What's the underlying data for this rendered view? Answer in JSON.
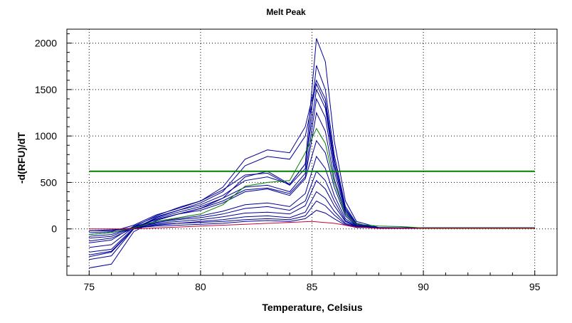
{
  "chart_data": {
    "type": "line",
    "title": "Melt Peak",
    "xlabel": "Temperature, Celsius",
    "ylabel": "-d(RFU)/dT",
    "xlim": [
      74,
      96
    ],
    "ylim": [
      -500,
      2150
    ],
    "xticks": [
      75,
      80,
      85,
      90,
      95
    ],
    "yticks": [
      0,
      500,
      1000,
      1500,
      2000
    ],
    "grid": true,
    "threshold": {
      "value": 620,
      "color": "#008000"
    },
    "colors": {
      "main": "#000099",
      "alt": "#008000",
      "low": "#cc0033"
    },
    "series": [
      {
        "color": "#000099",
        "values": [
          [
            75,
            -20
          ],
          [
            76,
            -20
          ],
          [
            77,
            10
          ],
          [
            78,
            100
          ],
          [
            79,
            160
          ],
          [
            80,
            220
          ],
          [
            81,
            330
          ],
          [
            82,
            560
          ],
          [
            83,
            620
          ],
          [
            84,
            480
          ],
          [
            84.7,
            700
          ],
          [
            85.2,
            2050
          ],
          [
            85.6,
            1800
          ],
          [
            86,
            950
          ],
          [
            86.5,
            300
          ],
          [
            87,
            80
          ],
          [
            88,
            15
          ],
          [
            90,
            10
          ],
          [
            95,
            10
          ]
        ]
      },
      {
        "color": "#000099",
        "values": [
          [
            75,
            -100
          ],
          [
            76,
            -80
          ],
          [
            77,
            20
          ],
          [
            78,
            140
          ],
          [
            79,
            230
          ],
          [
            80,
            300
          ],
          [
            81,
            420
          ],
          [
            82,
            580
          ],
          [
            83,
            600
          ],
          [
            84,
            470
          ],
          [
            84.7,
            650
          ],
          [
            85.2,
            1760
          ],
          [
            85.6,
            1500
          ],
          [
            86,
            800
          ],
          [
            86.5,
            240
          ],
          [
            87,
            60
          ],
          [
            88,
            10
          ],
          [
            95,
            10
          ]
        ]
      },
      {
        "color": "#000099",
        "values": [
          [
            75,
            -40
          ],
          [
            76,
            -30
          ],
          [
            77,
            40
          ],
          [
            78,
            150
          ],
          [
            79,
            220
          ],
          [
            80,
            300
          ],
          [
            81,
            450
          ],
          [
            82,
            750
          ],
          [
            83,
            850
          ],
          [
            84,
            820
          ],
          [
            84.7,
            1100
          ],
          [
            85.2,
            1600
          ],
          [
            85.6,
            1400
          ],
          [
            86,
            750
          ],
          [
            86.5,
            220
          ],
          [
            87,
            50
          ],
          [
            88,
            10
          ],
          [
            95,
            10
          ]
        ]
      },
      {
        "color": "#000099",
        "values": [
          [
            75,
            -300
          ],
          [
            76,
            -250
          ],
          [
            77,
            0
          ],
          [
            78,
            120
          ],
          [
            79,
            200
          ],
          [
            80,
            280
          ],
          [
            81,
            400
          ],
          [
            82,
            680
          ],
          [
            83,
            780
          ],
          [
            84,
            750
          ],
          [
            84.7,
            1000
          ],
          [
            85.2,
            1560
          ],
          [
            85.6,
            1350
          ],
          [
            86,
            700
          ],
          [
            86.5,
            200
          ],
          [
            87,
            50
          ],
          [
            88,
            10
          ],
          [
            95,
            10
          ]
        ]
      },
      {
        "color": "#000099",
        "values": [
          [
            75,
            -150
          ],
          [
            76,
            -120
          ],
          [
            77,
            30
          ],
          [
            78,
            130
          ],
          [
            79,
            200
          ],
          [
            80,
            260
          ],
          [
            81,
            360
          ],
          [
            82,
            520
          ],
          [
            83,
            560
          ],
          [
            84,
            480
          ],
          [
            84.7,
            700
          ],
          [
            85.2,
            1500
          ],
          [
            85.6,
            1300
          ],
          [
            86,
            680
          ],
          [
            86.5,
            200
          ],
          [
            87,
            50
          ],
          [
            88,
            10
          ],
          [
            95,
            10
          ]
        ]
      },
      {
        "color": "#000099",
        "values": [
          [
            75,
            -250
          ],
          [
            76,
            -220
          ],
          [
            77,
            10
          ],
          [
            78,
            110
          ],
          [
            79,
            180
          ],
          [
            80,
            240
          ],
          [
            81,
            330
          ],
          [
            82,
            450
          ],
          [
            83,
            470
          ],
          [
            84,
            400
          ],
          [
            84.7,
            600
          ],
          [
            85.2,
            1400
          ],
          [
            85.6,
            1200
          ],
          [
            86,
            620
          ],
          [
            86.5,
            180
          ],
          [
            87,
            40
          ],
          [
            88,
            10
          ],
          [
            95,
            10
          ]
        ]
      },
      {
        "color": "#000099",
        "values": [
          [
            75,
            -420
          ],
          [
            76,
            -380
          ],
          [
            77,
            -30
          ],
          [
            78,
            90
          ],
          [
            79,
            160
          ],
          [
            80,
            220
          ],
          [
            81,
            300
          ],
          [
            82,
            420
          ],
          [
            83,
            440
          ],
          [
            84,
            380
          ],
          [
            84.7,
            560
          ],
          [
            85.2,
            1250
          ],
          [
            85.6,
            1050
          ],
          [
            86,
            540
          ],
          [
            86.5,
            160
          ],
          [
            87,
            40
          ],
          [
            88,
            10
          ],
          [
            95,
            10
          ]
        ]
      },
      {
        "color": "#000099",
        "values": [
          [
            75,
            -200
          ],
          [
            76,
            -170
          ],
          [
            77,
            20
          ],
          [
            78,
            100
          ],
          [
            79,
            160
          ],
          [
            80,
            200
          ],
          [
            81,
            280
          ],
          [
            82,
            400
          ],
          [
            83,
            430
          ],
          [
            84,
            360
          ],
          [
            84.7,
            540
          ],
          [
            85.2,
            950
          ],
          [
            85.6,
            820
          ],
          [
            86,
            450
          ],
          [
            86.5,
            140
          ],
          [
            87,
            30
          ],
          [
            88,
            10
          ],
          [
            95,
            10
          ]
        ]
      },
      {
        "color": "#000099",
        "values": [
          [
            75,
            -80
          ],
          [
            76,
            -60
          ],
          [
            77,
            20
          ],
          [
            78,
            80
          ],
          [
            79,
            110
          ],
          [
            80,
            140
          ],
          [
            81,
            190
          ],
          [
            82,
            260
          ],
          [
            83,
            280
          ],
          [
            84,
            240
          ],
          [
            84.7,
            380
          ],
          [
            85.2,
            780
          ],
          [
            85.6,
            650
          ],
          [
            86,
            360
          ],
          [
            86.5,
            110
          ],
          [
            87,
            30
          ],
          [
            88,
            10
          ],
          [
            95,
            10
          ]
        ]
      },
      {
        "color": "#000099",
        "values": [
          [
            75,
            -330
          ],
          [
            76,
            -290
          ],
          [
            77,
            0
          ],
          [
            78,
            70
          ],
          [
            79,
            100
          ],
          [
            80,
            120
          ],
          [
            81,
            160
          ],
          [
            82,
            220
          ],
          [
            83,
            240
          ],
          [
            84,
            200
          ],
          [
            84.7,
            300
          ],
          [
            85.2,
            620
          ],
          [
            85.6,
            520
          ],
          [
            86,
            300
          ],
          [
            86.5,
            90
          ],
          [
            87,
            25
          ],
          [
            88,
            10
          ],
          [
            95,
            10
          ]
        ]
      },
      {
        "color": "#000099",
        "values": [
          [
            75,
            -130
          ],
          [
            76,
            -100
          ],
          [
            77,
            10
          ],
          [
            78,
            60
          ],
          [
            79,
            80
          ],
          [
            80,
            100
          ],
          [
            81,
            130
          ],
          [
            82,
            170
          ],
          [
            83,
            180
          ],
          [
            84,
            160
          ],
          [
            84.7,
            250
          ],
          [
            85.2,
            520
          ],
          [
            85.6,
            430
          ],
          [
            86,
            250
          ],
          [
            86.5,
            80
          ],
          [
            87,
            20
          ],
          [
            88,
            10
          ],
          [
            95,
            10
          ]
        ]
      },
      {
        "color": "#000099",
        "values": [
          [
            75,
            -60
          ],
          [
            76,
            -40
          ],
          [
            77,
            10
          ],
          [
            78,
            40
          ],
          [
            79,
            60
          ],
          [
            80,
            80
          ],
          [
            81,
            100
          ],
          [
            82,
            130
          ],
          [
            83,
            140
          ],
          [
            84,
            120
          ],
          [
            84.7,
            180
          ],
          [
            85.2,
            400
          ],
          [
            85.6,
            330
          ],
          [
            86,
            190
          ],
          [
            86.5,
            60
          ],
          [
            87,
            20
          ],
          [
            88,
            10
          ],
          [
            95,
            10
          ]
        ]
      },
      {
        "color": "#000099",
        "values": [
          [
            75,
            -280
          ],
          [
            76,
            -240
          ],
          [
            77,
            0
          ],
          [
            78,
            50
          ],
          [
            79,
            60
          ],
          [
            80,
            70
          ],
          [
            81,
            80
          ],
          [
            82,
            100
          ],
          [
            83,
            110
          ],
          [
            84,
            100
          ],
          [
            84.7,
            140
          ],
          [
            85.2,
            300
          ],
          [
            85.6,
            250
          ],
          [
            86,
            150
          ],
          [
            86.5,
            50
          ],
          [
            87,
            15
          ],
          [
            88,
            10
          ],
          [
            95,
            10
          ]
        ]
      },
      {
        "color": "#000099",
        "values": [
          [
            75,
            -20
          ],
          [
            76,
            -10
          ],
          [
            77,
            10
          ],
          [
            78,
            30
          ],
          [
            79,
            40
          ],
          [
            80,
            50
          ],
          [
            81,
            60
          ],
          [
            82,
            80
          ],
          [
            83,
            90
          ],
          [
            84,
            80
          ],
          [
            84.7,
            110
          ],
          [
            85.2,
            200
          ],
          [
            85.6,
            170
          ],
          [
            86,
            110
          ],
          [
            86.5,
            40
          ],
          [
            87,
            15
          ],
          [
            88,
            10
          ],
          [
            95,
            10
          ]
        ]
      },
      {
        "color": "#008000",
        "values": [
          [
            75,
            -60
          ],
          [
            76,
            -40
          ],
          [
            77,
            10
          ],
          [
            78,
            80
          ],
          [
            79,
            120
          ],
          [
            80,
            160
          ],
          [
            81,
            260
          ],
          [
            82,
            460
          ],
          [
            83,
            500
          ],
          [
            84,
            520
          ],
          [
            84.7,
            820
          ],
          [
            85.2,
            1080
          ],
          [
            85.6,
            920
          ],
          [
            86,
            500
          ],
          [
            86.5,
            160
          ],
          [
            87,
            50
          ],
          [
            88,
            30
          ],
          [
            89,
            25
          ],
          [
            90,
            10
          ],
          [
            95,
            10
          ]
        ]
      },
      {
        "color": "#cc0033",
        "values": [
          [
            75,
            0
          ],
          [
            76,
            0
          ],
          [
            77,
            0
          ],
          [
            78,
            10
          ],
          [
            79,
            20
          ],
          [
            80,
            30
          ],
          [
            81,
            40
          ],
          [
            82,
            50
          ],
          [
            83,
            60
          ],
          [
            84,
            70
          ],
          [
            85,
            80
          ],
          [
            86,
            60
          ],
          [
            87,
            20
          ],
          [
            88,
            5
          ],
          [
            95,
            5
          ]
        ]
      }
    ]
  }
}
